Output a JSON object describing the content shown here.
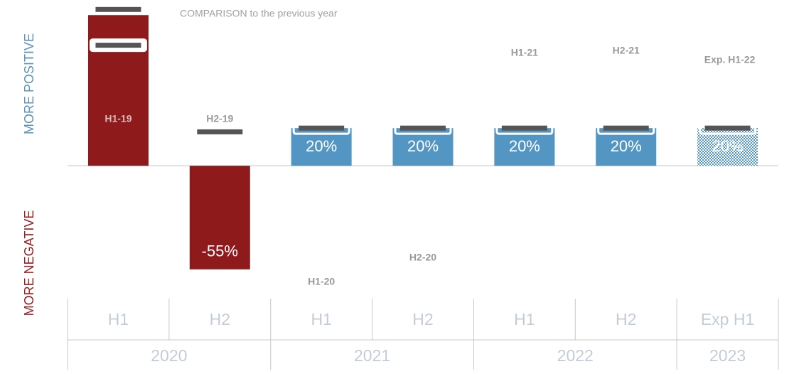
{
  "chart_data": {
    "type": "bar",
    "title": "COMPARISON to the previous year",
    "positive_label": "MORE POSITIVE",
    "negative_label": "MORE NEGATIVE",
    "categories": [
      "H1",
      "H2",
      "H1",
      "H2",
      "H1",
      "H2",
      "Exp H1"
    ],
    "groups": [
      {
        "label": "2020",
        "span": 2
      },
      {
        "label": "2021",
        "span": 2
      },
      {
        "label": "2022",
        "span": 2
      },
      {
        "label": "2023",
        "span": 1
      }
    ],
    "values": [
      80,
      -55,
      20,
      20,
      20,
      20,
      20
    ],
    "value_labels": [
      null,
      "-55%",
      "20%",
      "20%",
      "20%",
      "20%",
      "20%"
    ],
    "colors": [
      "#8e1a1c",
      "#8e1a1c",
      "#5496c3",
      "#5496c3",
      "#5496c3",
      "#5496c3",
      "#5496c3"
    ],
    "hatched": [
      false,
      false,
      false,
      false,
      false,
      false,
      true
    ],
    "markers": [
      {
        "bar": 0,
        "value": 83
      },
      {
        "bar": 0,
        "value": 64
      },
      {
        "bar": 1,
        "value": 18
      },
      {
        "bar": 2,
        "value": 20
      },
      {
        "bar": 3,
        "value": 20
      },
      {
        "bar": 4,
        "value": 20
      },
      {
        "bar": 5,
        "value": 20
      },
      {
        "bar": 6,
        "value": 20
      }
    ],
    "annotations": [
      "H1-19",
      "H2-19",
      "H1-20",
      "H2-20",
      "H1-21",
      "H2-21",
      "Exp. H1-22"
    ],
    "ylim": [
      -100,
      85
    ]
  }
}
